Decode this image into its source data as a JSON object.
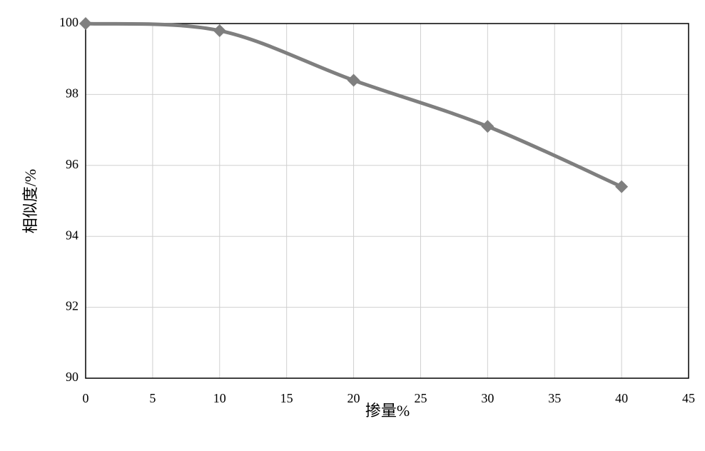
{
  "chart_data": {
    "type": "line",
    "x_label": "掺量%",
    "y_label": "相似度/%",
    "x": [
      0,
      10,
      20,
      30,
      40
    ],
    "values": [
      100,
      99.8,
      98.4,
      97.1,
      95.4
    ],
    "color": "#7f7f7f",
    "xlim": [
      0,
      45
    ],
    "xticks": [
      0,
      5,
      10,
      15,
      20,
      25,
      30,
      35,
      40,
      45
    ],
    "ylim": [
      90,
      100
    ],
    "yticks": [
      90,
      92,
      94,
      96,
      98,
      100
    ],
    "grid": true
  }
}
